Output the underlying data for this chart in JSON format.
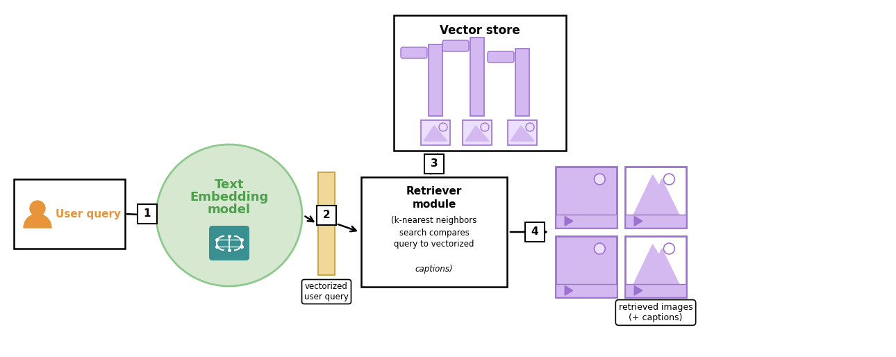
{
  "bg_color": "#ffffff",
  "orange": "#E8943A",
  "green_fill": "#D6E8D0",
  "green_border": "#8DC88D",
  "green_text": "#4D9E4D",
  "teal": "#3A9090",
  "purple": "#9B72CF",
  "purple_light": "#D4B8F0",
  "purple_fill": "#EDE0FF",
  "tan_fill": "#F0D898",
  "tan_border": "#C8A84A",
  "black": "#111111",
  "user_query_label": "User query",
  "embed_line1": "Text",
  "embed_line2": "Embedding",
  "embed_line3": "model",
  "vectorized_label": "vectorized\nuser query",
  "vector_store_label": "Vector store",
  "retriever_bold": "Retriever\nmodule",
  "retriever_normal1": "(k-nearest neighbors",
  "retriever_normal2": "search compares",
  "retriever_normal3": "query to vectorized",
  "retriever_italic": "captions)",
  "retrieved_label": "retrieved images\n(+ captions)",
  "s1": "1",
  "s2": "2",
  "s3": "3",
  "s4": "4"
}
